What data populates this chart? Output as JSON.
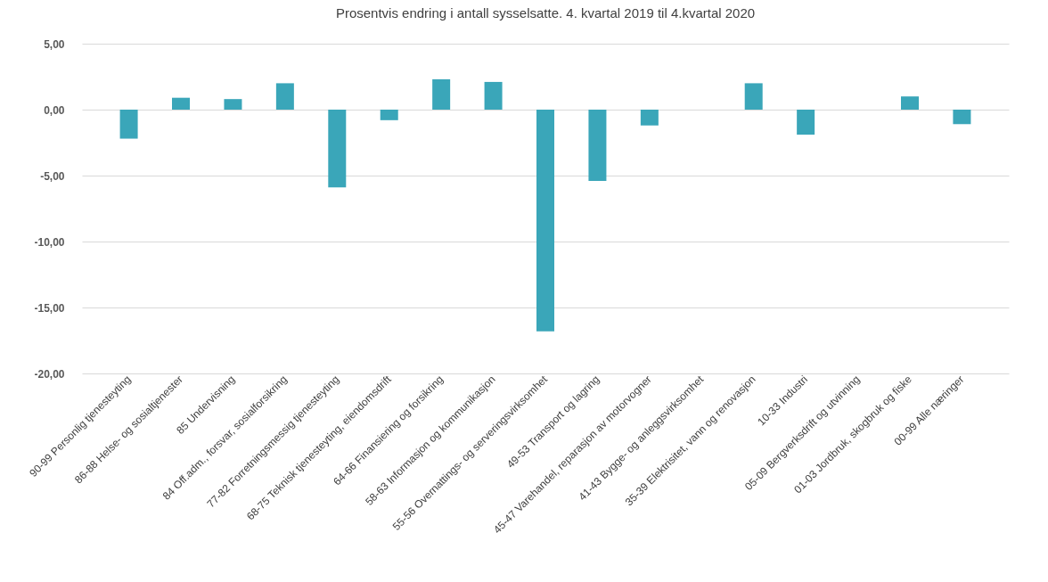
{
  "chart_data": {
    "type": "bar",
    "title": "Prosentvis endring i antall sysselsatte. 4. kvartal 2019 til 4.kvartal 2020",
    "categories": [
      "90-99 Personlig tjenesteyting",
      "86-88 Helse- og sosialtjenester",
      "85 Undervisning",
      "84 Off.adm., forsvar, sosialforsikring",
      "77-82 Forretningsmessig tjenesteyting",
      "68-75 Teknisk tjenesteyting, eiendomsdrift",
      "64-66 Finansiering og forsikring",
      "58-63 Informasjon og kommunikasjon",
      "55-56 Overnattings- og serveringsvirksomhet",
      "49-53 Transport og lagring",
      "45-47 Varehandel, reparasjon av motorvogner",
      "41-43 Bygge- og anleggsvirksomhet",
      "35-39 Elektrisitet, vann og renovasjon",
      "10-33 Industri",
      "05-09 Bergverksdrift og utvinning",
      "01-03 Jordbruk, skogbruk og fiske",
      "00-99 Alle næringer"
    ],
    "values": [
      -2.2,
      0.9,
      0.8,
      2.0,
      -5.9,
      -0.8,
      2.3,
      2.1,
      -16.8,
      -5.4,
      -1.2,
      0,
      2.0,
      -1.9,
      0,
      1.0,
      -1.1
    ],
    "color": "#3aa6b9",
    "ylim": [
      -20,
      5
    ],
    "yticks": [
      {
        "value": -20,
        "label": "-20,00"
      },
      {
        "value": -15,
        "label": "-15,00"
      },
      {
        "value": -10,
        "label": "-10,00"
      },
      {
        "value": -5,
        "label": "-5,00"
      },
      {
        "value": 0,
        "label": "0,00"
      },
      {
        "value": 5,
        "label": "5,00"
      }
    ],
    "grid": "y"
  }
}
